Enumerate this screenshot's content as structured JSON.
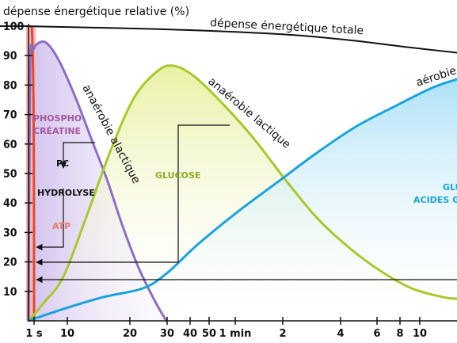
{
  "chart_data": {
    "type": "area",
    "ylabel": "dépense énergétique relative (%)",
    "ylim": [
      0,
      100
    ],
    "yticks": [
      10,
      20,
      30,
      40,
      50,
      60,
      70,
      80,
      90,
      100
    ],
    "xticks": [
      "1 s",
      "10",
      "20",
      "30",
      "40",
      "50",
      "1 min",
      "2",
      "4",
      "6",
      "8",
      "10"
    ],
    "series": [
      {
        "name": "dépense énergétique totale",
        "color": "#111111",
        "values": [
          [
            0,
            100
          ],
          [
            30,
            100
          ],
          [
            120,
            99.5
          ],
          [
            200,
            99
          ],
          [
            300,
            98
          ],
          [
            380,
            96.8
          ],
          [
            450,
            95
          ],
          [
            510,
            93
          ],
          [
            577,
            91
          ]
        ]
      },
      {
        "name": "anaérobie alactique",
        "color": "#8c6ec4",
        "values": [
          [
            36,
            0
          ],
          [
            38,
            85
          ],
          [
            42,
            92
          ],
          [
            50,
            94.5
          ],
          [
            60,
            94
          ],
          [
            75,
            88
          ],
          [
            95,
            76
          ],
          [
            115,
            62
          ],
          [
            135,
            48
          ],
          [
            155,
            32
          ],
          [
            175,
            18
          ],
          [
            195,
            7
          ],
          [
            210,
            0
          ]
        ]
      },
      {
        "name": "anaérobie lactique",
        "color": "#a9c82b",
        "values": [
          [
            36,
            0
          ],
          [
            55,
            6
          ],
          [
            80,
            15
          ],
          [
            110,
            36
          ],
          [
            140,
            58
          ],
          [
            170,
            76
          ],
          [
            200,
            85
          ],
          [
            220,
            86.5
          ],
          [
            245,
            83
          ],
          [
            280,
            74
          ],
          [
            320,
            62
          ],
          [
            360,
            48
          ],
          [
            400,
            35
          ],
          [
            440,
            25
          ],
          [
            480,
            17
          ],
          [
            520,
            11
          ],
          [
            560,
            8
          ],
          [
            577,
            7.5
          ]
        ]
      },
      {
        "name": "aérobie",
        "color": "#1aa3dc",
        "values": [
          [
            36,
            0
          ],
          [
            80,
            4
          ],
          [
            130,
            8
          ],
          [
            180,
            11
          ],
          [
            210,
            16
          ],
          [
            250,
            26
          ],
          [
            300,
            37
          ],
          [
            350,
            47
          ],
          [
            400,
            57
          ],
          [
            450,
            66
          ],
          [
            500,
            73
          ],
          [
            545,
            79
          ],
          [
            577,
            82
          ]
        ]
      }
    ],
    "annotations": [
      {
        "text": "PHOSPHO",
        "color": "#a45a9e"
      },
      {
        "text": "CRÉATINE",
        "color": "#a45a9e"
      },
      {
        "text": "PC",
        "color": "#111111"
      },
      {
        "text": "HYDROLYSE",
        "color": "#111111"
      },
      {
        "text": "ATP",
        "color": "#e8796a"
      },
      {
        "text": "GLUCOSE",
        "color": "#8aab1e"
      },
      {
        "text": "GLU",
        "color": "#1aa3dc"
      },
      {
        "text": "ACIDES GRA",
        "color": "#1aa3dc"
      }
    ]
  }
}
